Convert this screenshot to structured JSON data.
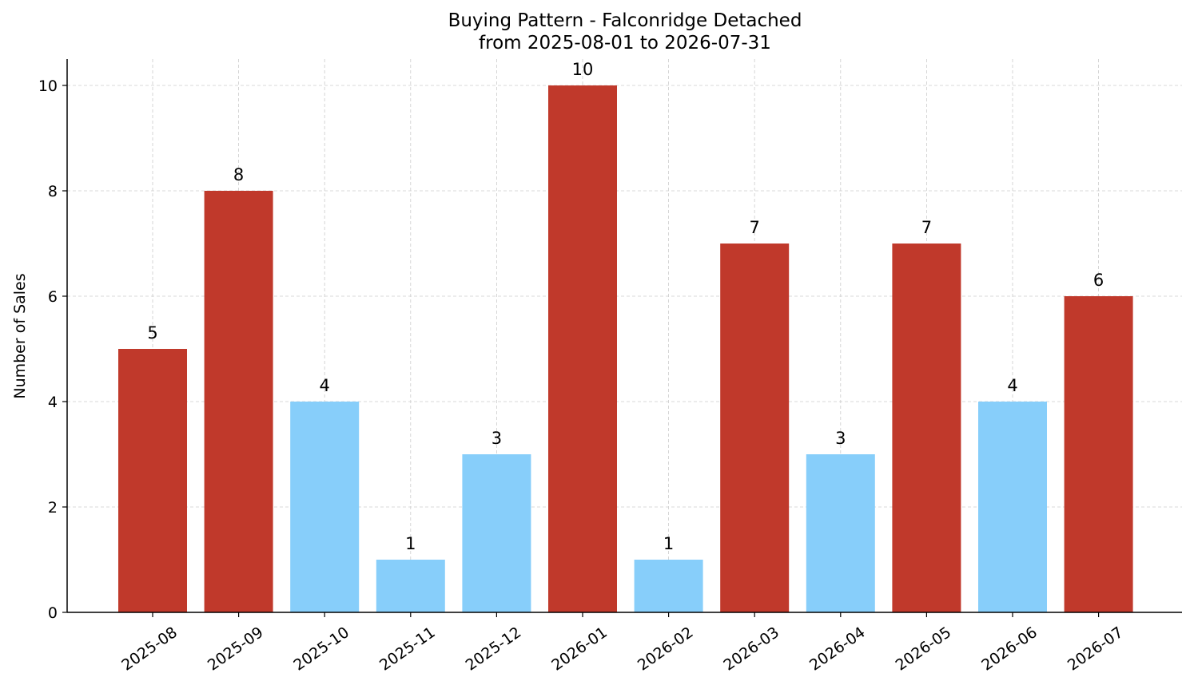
{
  "chart_data": {
    "type": "bar",
    "title": "Buying Pattern - Falconridge Detached",
    "subtitle": "from 2025-08-01 to 2026-07-31",
    "xlabel": "",
    "ylabel": "Number of Sales",
    "categories": [
      "2025-08",
      "2025-09",
      "2025-10",
      "2025-11",
      "2025-12",
      "2026-01",
      "2026-02",
      "2026-03",
      "2026-04",
      "2026-05",
      "2026-06",
      "2026-07"
    ],
    "values": [
      5,
      8,
      4,
      1,
      3,
      10,
      1,
      7,
      3,
      7,
      4,
      6
    ],
    "bar_colors": [
      "#c0392b",
      "#c0392b",
      "#87cefa",
      "#87cefa",
      "#87cefa",
      "#c0392b",
      "#87cefa",
      "#c0392b",
      "#87cefa",
      "#c0392b",
      "#87cefa",
      "#c0392b"
    ],
    "ylim": [
      0,
      10.5
    ],
    "yticks": [
      0,
      2,
      4,
      6,
      8,
      10
    ],
    "grid": true,
    "legend": "none"
  }
}
